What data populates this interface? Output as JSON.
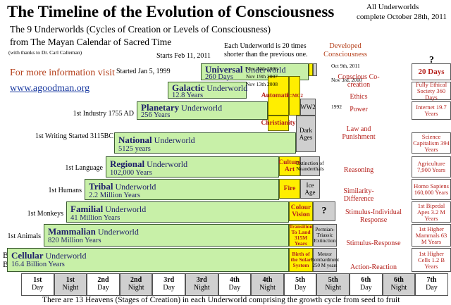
{
  "header": {
    "title": "The Timeline of the Evolution of Consciousness",
    "subtitle1": "The 9 Underworlds (Cycles of Creation or Levels of Consciousness)",
    "subtitle2": "from The Mayan Calendar of Sacred Time",
    "thanks": "(with thanks to Dr. Carl Calleman)",
    "info": "For more information visit",
    "url": "www.agoodman.org",
    "all_underworlds": "All Underworlds",
    "complete": "complete October 28th, 2011",
    "developed": "Developed Consciousness",
    "shorter": "Each Underworld is 20 times shorter than the previous one.",
    "question": "?"
  },
  "rows": [
    {
      "start": "Starts Feb 11, 2011",
      "name": "Universal",
      "years": "260 Days"
    },
    {
      "start": "Started Jan 5, 1999",
      "name": "Galactic",
      "years": "12.8 Years"
    },
    {
      "start": "1st Industry 1755 AD",
      "name": "Planetary",
      "years": "256 Years"
    },
    {
      "start": "1st Writing Started 3115BC",
      "name": "National",
      "years": "5125 years"
    },
    {
      "start": "1st Language",
      "name": "Regional",
      "years": "102,000 Years"
    },
    {
      "start": "1st Humans",
      "name": "Tribal",
      "years": "2.2 Million Years"
    },
    {
      "start": "1st Monkeys",
      "name": "Familial",
      "years": "41 Million Years"
    },
    {
      "start": "1st Animals",
      "name": "Mammalian",
      "years": "820 Million Years"
    },
    {
      "start": "Big Bang",
      "name": "Cellular",
      "years": "16.4 Billion Years"
    }
  ],
  "underworld_word": "Underworld",
  "yellow": [
    "Christianity",
    "Culture Art",
    "Fire",
    "Colour Vision",
    "Transition To Land 315M Years",
    "Birth of the Solar System"
  ],
  "grey": [
    "Dark Ages",
    "Extinction of Neanderthals",
    "Ice Age",
    "?",
    "Permian-Triassic Extinction",
    "Meteor Bombardment 250 M years",
    "WW2"
  ],
  "automation": "Automation",
  "emc2": "E=MC2",
  "notes": [
    "Oct 9th, 2011",
    "Nov 24th 2006",
    "Nov 19th 2007",
    "Nov 13th 2008",
    "Nov 3rd, 2010",
    "1992"
  ],
  "developed_items": [
    "Conscious Co-creation",
    "Ethics",
    "Power",
    "Law and Punishment",
    "Reasoning",
    "Similarity-Difference",
    "Stimulus-Individual Response",
    "Stimulus-Response",
    "Action-Reaction"
  ],
  "results": [
    "20 Days",
    "Fully Ethical Society 360 Days",
    "Internet 19.7 Years",
    "Science Capitalism 394 Years",
    "Agriculture 7,900 Years",
    "Homo Sapiens 160,000 Years",
    "1st Bipedal Apes 3.2 M Years",
    "1st Higher Mammals 63 M Years",
    "1st Higher Cells 1.2 B Years"
  ],
  "days": [
    {
      "n": "1st",
      "t": "Day"
    },
    {
      "n": "1st",
      "t": "Night"
    },
    {
      "n": "2nd",
      "t": "Day"
    },
    {
      "n": "2nd",
      "t": "Night"
    },
    {
      "n": "3rd",
      "t": "Day"
    },
    {
      "n": "3rd",
      "t": "Night"
    },
    {
      "n": "4th",
      "t": "Day"
    },
    {
      "n": "4th",
      "t": "Night"
    },
    {
      "n": "5th",
      "t": "Day"
    },
    {
      "n": "5th",
      "t": "Night"
    },
    {
      "n": "6th",
      "t": "Day"
    },
    {
      "n": "6th",
      "t": "Night"
    },
    {
      "n": "7th",
      "t": "Day"
    }
  ],
  "footer": "There are 13 Heavens (Stages of Creation) in each Underworld comprising the growth cycle from seed to fruit"
}
